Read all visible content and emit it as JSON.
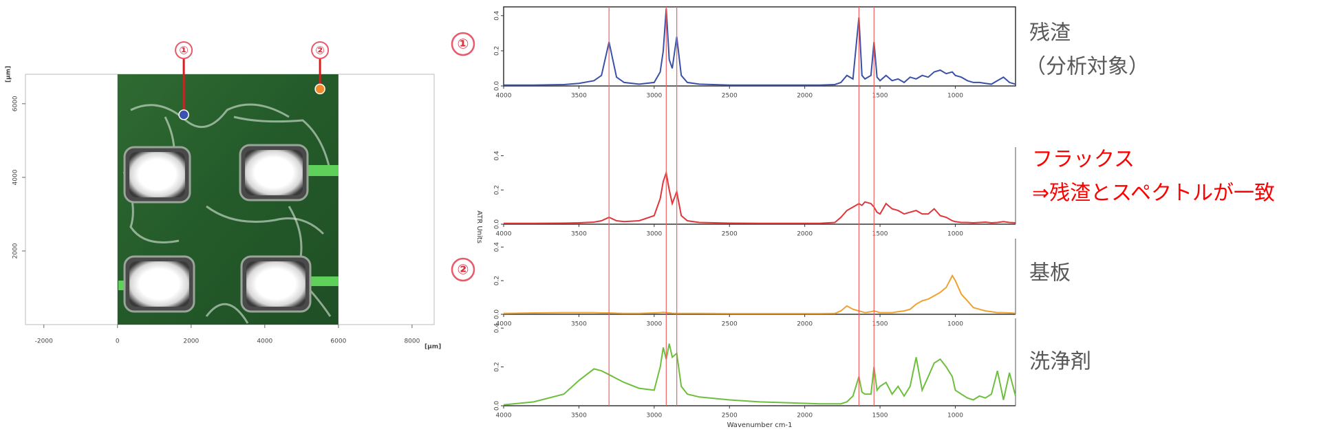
{
  "chart_data": [
    {
      "type": "scatter",
      "xlabel": "[µm]",
      "ylabel": "[µm]",
      "xlim": [
        -2500,
        8600
      ],
      "ylim": [
        0,
        6800
      ],
      "xticks": [
        -2000,
        0,
        2000,
        4000,
        6000,
        8000
      ],
      "yticks": [
        2000,
        4000,
        6000
      ],
      "series": [
        {
          "name": "①",
          "color": "#3a52b0",
          "x": [
            1800
          ],
          "values": [
            5700
          ]
        },
        {
          "name": "②",
          "color": "#ef8c2a",
          "x": [
            5500
          ],
          "values": [
            6400
          ]
        }
      ]
    },
    {
      "type": "line",
      "xlabel": "Wavenumber cm-1",
      "ylabel": "ATR Units",
      "xlim": [
        4000,
        600
      ],
      "ylim": [
        0,
        0.45
      ],
      "xticks": [
        4000,
        3500,
        3000,
        2500,
        2000,
        1500,
        1000
      ],
      "yticks": [
        {
          "value": 0,
          "label": "0.0"
        },
        0.2,
        0.4
      ],
      "reference_lines": [
        3300,
        2920,
        2850,
        1640,
        1540
      ],
      "x": [
        4000,
        3800,
        3600,
        3500,
        3400,
        3350,
        3300,
        3250,
        3200,
        3100,
        3000,
        2960,
        2940,
        2920,
        2900,
        2880,
        2850,
        2820,
        2780,
        2700,
        2500,
        2300,
        2100,
        1900,
        1800,
        1760,
        1720,
        1680,
        1640,
        1620,
        1600,
        1560,
        1540,
        1520,
        1500,
        1460,
        1420,
        1380,
        1340,
        1300,
        1260,
        1220,
        1180,
        1140,
        1100,
        1060,
        1020,
        1000,
        960,
        920,
        880,
        840,
        800,
        760,
        720,
        680,
        640,
        600
      ],
      "series": [
        {
          "name": "残渣",
          "annotation": "（分析対象）",
          "color": "#3850a8",
          "values": [
            0.005,
            0.005,
            0.008,
            0.015,
            0.03,
            0.06,
            0.25,
            0.05,
            0.02,
            0.01,
            0.02,
            0.08,
            0.2,
            0.44,
            0.15,
            0.1,
            0.28,
            0.06,
            0.02,
            0.01,
            0.005,
            0.005,
            0.005,
            0.005,
            0.008,
            0.02,
            0.06,
            0.04,
            0.39,
            0.06,
            0.04,
            0.06,
            0.25,
            0.05,
            0.03,
            0.06,
            0.03,
            0.04,
            0.02,
            0.05,
            0.04,
            0.06,
            0.05,
            0.08,
            0.09,
            0.07,
            0.08,
            0.06,
            0.05,
            0.03,
            0.02,
            0.02,
            0.015,
            0.01,
            0.03,
            0.05,
            0.02,
            0.01
          ]
        },
        {
          "name": "フラックス",
          "annotation": "⇒残渣とスペクトルが一致",
          "color": "#e0343a",
          "values": [
            0.005,
            0.005,
            0.006,
            0.008,
            0.012,
            0.02,
            0.04,
            0.02,
            0.015,
            0.02,
            0.05,
            0.15,
            0.25,
            0.3,
            0.2,
            0.12,
            0.19,
            0.05,
            0.02,
            0.01,
            0.006,
            0.005,
            0.005,
            0.005,
            0.01,
            0.04,
            0.08,
            0.1,
            0.12,
            0.11,
            0.13,
            0.12,
            0.1,
            0.07,
            0.06,
            0.12,
            0.09,
            0.08,
            0.06,
            0.07,
            0.08,
            0.06,
            0.06,
            0.09,
            0.05,
            0.04,
            0.02,
            0.015,
            0.01,
            0.01,
            0.008,
            0.01,
            0.012,
            0.008,
            0.01,
            0.015,
            0.01,
            0.008
          ]
        },
        {
          "name": "基板",
          "color": "#f0a030",
          "values": [
            0.005,
            0.008,
            0.01,
            0.01,
            0.01,
            0.008,
            0.008,
            0.006,
            0.005,
            0.005,
            0.008,
            0.01,
            0.012,
            0.01,
            0.008,
            0.006,
            0.005,
            0.005,
            0.005,
            0.005,
            0.004,
            0.004,
            0.004,
            0.004,
            0.005,
            0.02,
            0.05,
            0.03,
            0.02,
            0.015,
            0.01,
            0.015,
            0.02,
            0.015,
            0.01,
            0.01,
            0.01,
            0.015,
            0.02,
            0.03,
            0.06,
            0.08,
            0.09,
            0.11,
            0.13,
            0.16,
            0.23,
            0.2,
            0.12,
            0.08,
            0.04,
            0.03,
            0.02,
            0.015,
            0.01,
            0.01,
            0.008,
            0.006
          ]
        },
        {
          "name": "洗浄剤",
          "color": "#6cbf3c",
          "values": [
            0.005,
            0.02,
            0.06,
            0.13,
            0.19,
            0.18,
            0.16,
            0.14,
            0.12,
            0.09,
            0.08,
            0.2,
            0.3,
            0.24,
            0.32,
            0.25,
            0.27,
            0.1,
            0.06,
            0.045,
            0.03,
            0.02,
            0.015,
            0.01,
            0.01,
            0.01,
            0.02,
            0.05,
            0.15,
            0.07,
            0.06,
            0.06,
            0.2,
            0.08,
            0.1,
            0.12,
            0.06,
            0.1,
            0.05,
            0.1,
            0.25,
            0.08,
            0.15,
            0.22,
            0.24,
            0.2,
            0.15,
            0.08,
            0.06,
            0.04,
            0.03,
            0.05,
            0.04,
            0.06,
            0.18,
            0.03,
            0.17,
            0.05
          ]
        }
      ]
    }
  ]
}
